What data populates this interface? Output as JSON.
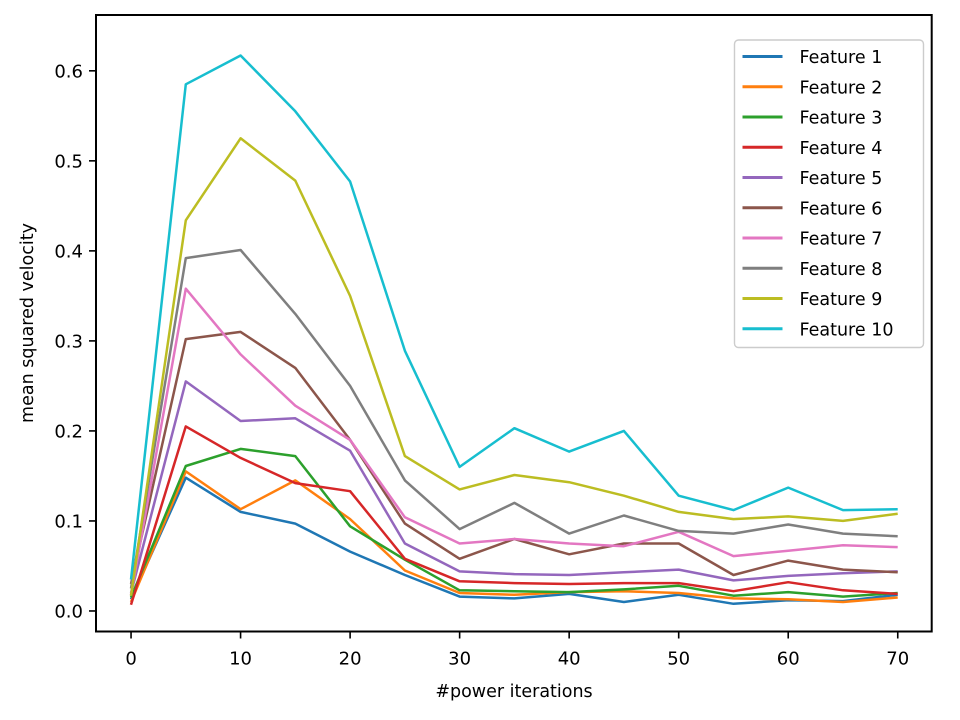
{
  "figure": {
    "background": "#ffffff",
    "axes_edge_color": "#000000",
    "legend_border_color": "#cccccc"
  },
  "chart_data": {
    "type": "line",
    "title": "",
    "xlabel": "#power iterations",
    "ylabel": "mean squared velocity",
    "xlim": [
      -3.2,
      73.1
    ],
    "ylim": [
      -0.0228,
      0.662
    ],
    "grid": false,
    "legend_position": "upper right",
    "xticks": {
      "values": [
        0,
        10,
        20,
        30,
        40,
        50,
        60,
        70
      ],
      "labels": [
        "0",
        "10",
        "20",
        "30",
        "40",
        "50",
        "60",
        "70"
      ]
    },
    "yticks": {
      "values": [
        0.0,
        0.1,
        0.2,
        0.3,
        0.4,
        0.5,
        0.6
      ],
      "labels": [
        "0.0",
        "0.1",
        "0.2",
        "0.3",
        "0.4",
        "0.5",
        "0.6"
      ]
    },
    "x": [
      0,
      5,
      10,
      15,
      20,
      25,
      30,
      35,
      40,
      45,
      50,
      55,
      60,
      65,
      70
    ],
    "series": [
      {
        "name": "Feature 1",
        "color": "#1f77b4",
        "values": [
          0.013,
          0.148,
          0.11,
          0.097,
          0.066,
          0.04,
          0.016,
          0.014,
          0.019,
          0.01,
          0.018,
          0.008,
          0.012,
          0.011,
          0.018
        ]
      },
      {
        "name": "Feature 2",
        "color": "#ff7f0e",
        "values": [
          0.01,
          0.155,
          0.113,
          0.145,
          0.102,
          0.045,
          0.02,
          0.018,
          0.021,
          0.022,
          0.02,
          0.014,
          0.013,
          0.01,
          0.015
        ]
      },
      {
        "name": "Feature 3",
        "color": "#2ca02c",
        "values": [
          0.015,
          0.161,
          0.18,
          0.172,
          0.094,
          0.057,
          0.023,
          0.022,
          0.021,
          0.024,
          0.028,
          0.017,
          0.021,
          0.016,
          0.02
        ]
      },
      {
        "name": "Feature 4",
        "color": "#d62728",
        "values": [
          0.007,
          0.205,
          0.17,
          0.142,
          0.133,
          0.058,
          0.033,
          0.031,
          0.03,
          0.031,
          0.031,
          0.022,
          0.032,
          0.023,
          0.019
        ]
      },
      {
        "name": "Feature 5",
        "color": "#9467bd",
        "values": [
          0.02,
          0.255,
          0.211,
          0.214,
          0.178,
          0.075,
          0.044,
          0.041,
          0.04,
          0.043,
          0.046,
          0.034,
          0.039,
          0.042,
          0.044
        ]
      },
      {
        "name": "Feature 6",
        "color": "#8c564b",
        "values": [
          0.03,
          0.302,
          0.31,
          0.27,
          0.19,
          0.097,
          0.058,
          0.08,
          0.063,
          0.075,
          0.075,
          0.04,
          0.056,
          0.046,
          0.043
        ]
      },
      {
        "name": "Feature 7",
        "color": "#e377c2",
        "values": [
          0.018,
          0.358,
          0.285,
          0.228,
          0.19,
          0.104,
          0.075,
          0.08,
          0.075,
          0.072,
          0.088,
          0.061,
          0.067,
          0.073,
          0.071
        ]
      },
      {
        "name": "Feature 8",
        "color": "#7f7f7f",
        "values": [
          0.025,
          0.392,
          0.401,
          0.33,
          0.25,
          0.145,
          0.091,
          0.12,
          0.086,
          0.106,
          0.089,
          0.086,
          0.096,
          0.086,
          0.083
        ]
      },
      {
        "name": "Feature 9",
        "color": "#bcbd22",
        "values": [
          0.017,
          0.434,
          0.525,
          0.478,
          0.35,
          0.172,
          0.135,
          0.151,
          0.143,
          0.128,
          0.11,
          0.102,
          0.105,
          0.1,
          0.108
        ]
      },
      {
        "name": "Feature 10",
        "color": "#17becf",
        "values": [
          0.035,
          0.585,
          0.617,
          0.555,
          0.477,
          0.289,
          0.16,
          0.203,
          0.177,
          0.2,
          0.128,
          0.112,
          0.137,
          0.112,
          0.113
        ]
      }
    ]
  }
}
